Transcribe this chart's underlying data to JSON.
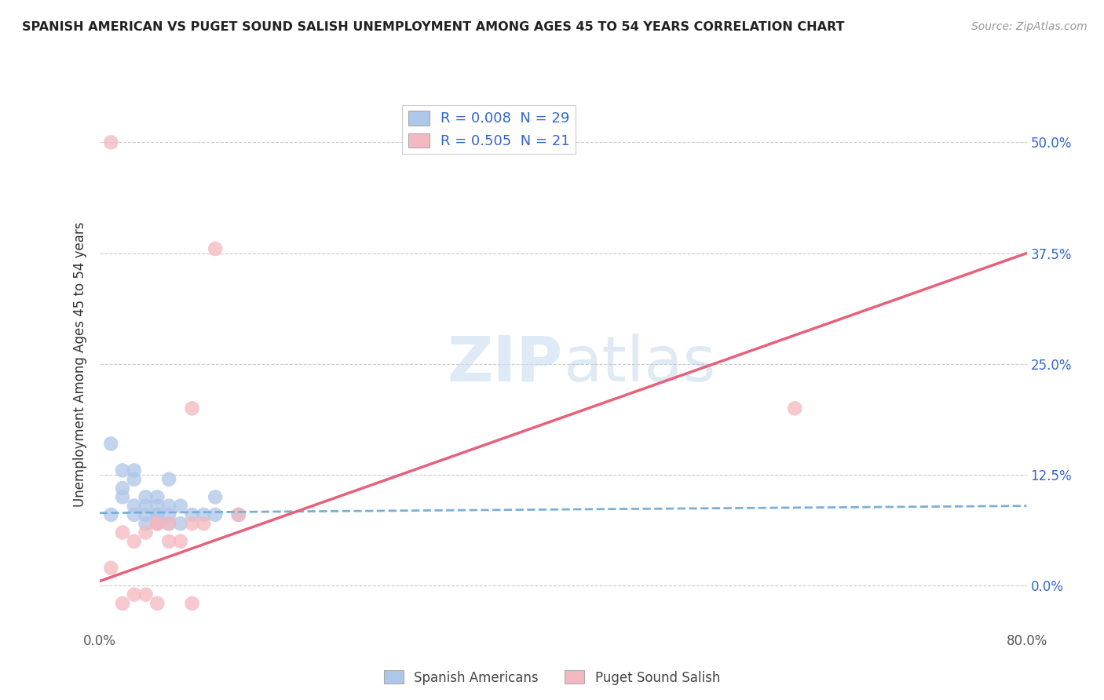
{
  "title": "SPANISH AMERICAN VS PUGET SOUND SALISH UNEMPLOYMENT AMONG AGES 45 TO 54 YEARS CORRELATION CHART",
  "source": "Source: ZipAtlas.com",
  "ylabel": "Unemployment Among Ages 45 to 54 years",
  "xlim": [
    0.0,
    0.8
  ],
  "ylim": [
    -0.05,
    0.55
  ],
  "xticks": [
    0.0,
    0.2,
    0.4,
    0.6,
    0.8
  ],
  "xticklabels": [
    "0.0%",
    "",
    "",
    "",
    "80.0%"
  ],
  "yticks": [
    0.0,
    0.125,
    0.25,
    0.375,
    0.5
  ],
  "yticklabels": [
    "0.0%",
    "12.5%",
    "25.0%",
    "37.5%",
    "50.0%"
  ],
  "blue_label": "Spanish Americans",
  "pink_label": "Puget Sound Salish",
  "blue_R": "0.008",
  "blue_N": "29",
  "pink_R": "0.505",
  "pink_N": "21",
  "blue_color": "#aec6e8",
  "pink_color": "#f4b8c0",
  "blue_line_color": "#7ab0d8",
  "pink_line_color": "#e8607a",
  "watermark_zip": "ZIP",
  "watermark_atlas": "atlas",
  "blue_scatter_x": [
    0.01,
    0.02,
    0.02,
    0.03,
    0.03,
    0.03,
    0.04,
    0.04,
    0.04,
    0.04,
    0.05,
    0.05,
    0.05,
    0.05,
    0.05,
    0.06,
    0.06,
    0.06,
    0.07,
    0.07,
    0.08,
    0.09,
    0.1,
    0.1,
    0.12,
    0.01,
    0.02,
    0.03,
    0.06
  ],
  "blue_scatter_y": [
    0.08,
    0.1,
    0.11,
    0.08,
    0.09,
    0.12,
    0.07,
    0.08,
    0.09,
    0.1,
    0.07,
    0.08,
    0.08,
    0.09,
    0.1,
    0.07,
    0.08,
    0.09,
    0.07,
    0.09,
    0.08,
    0.08,
    0.08,
    0.1,
    0.08,
    0.16,
    0.13,
    0.13,
    0.12
  ],
  "pink_scatter_x": [
    0.01,
    0.02,
    0.02,
    0.03,
    0.03,
    0.04,
    0.04,
    0.05,
    0.05,
    0.06,
    0.06,
    0.07,
    0.08,
    0.09,
    0.12,
    0.08,
    0.1,
    0.01,
    0.05,
    0.08,
    0.6
  ],
  "pink_scatter_y": [
    0.02,
    0.06,
    -0.02,
    0.05,
    -0.01,
    0.06,
    -0.01,
    0.07,
    0.07,
    0.05,
    0.07,
    0.05,
    0.07,
    0.07,
    0.08,
    0.2,
    0.38,
    0.5,
    -0.02,
    -0.02,
    0.2
  ],
  "blue_trend_x": [
    0.0,
    0.8
  ],
  "blue_trend_y": [
    0.082,
    0.09
  ],
  "pink_trend_x": [
    0.0,
    0.8
  ],
  "pink_trend_y": [
    0.005,
    0.375
  ]
}
